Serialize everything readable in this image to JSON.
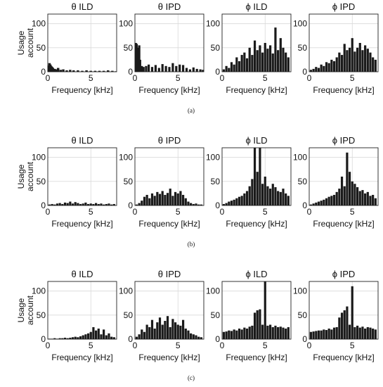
{
  "chart_data": [
    {
      "caption": "(a)",
      "panels": [
        {
          "type": "bar",
          "title": "θ ILD",
          "xlabel": "Frequency [kHz]",
          "ylabel": "Usage account",
          "xlim": [
            0,
            8
          ],
          "ylim": [
            0,
            120
          ],
          "xticks": [
            0,
            5
          ],
          "yticks": [
            0,
            50,
            100
          ],
          "x": [
            0.1,
            0.2,
            0.3,
            0.4,
            0.5,
            0.6,
            0.8,
            1.0,
            1.2,
            1.5,
            1.8,
            2.2,
            2.6,
            3.0,
            3.5,
            4.0,
            4.5,
            5.0,
            5.5,
            6.0,
            6.5,
            7.0,
            7.5,
            7.9
          ],
          "values": [
            13,
            18,
            15,
            12,
            10,
            8,
            6,
            5,
            8,
            4,
            5,
            3,
            4,
            3,
            3,
            2,
            3,
            2,
            2,
            2,
            2,
            3,
            2,
            1
          ]
        },
        {
          "type": "bar",
          "title": "θ IPD",
          "xlabel": "Frequency [kHz]",
          "ylabel": "",
          "xlim": [
            0,
            8
          ],
          "ylim": [
            0,
            120
          ],
          "xticks": [
            0,
            5
          ],
          "yticks": [
            0,
            50,
            100
          ],
          "x": [
            0.1,
            0.2,
            0.3,
            0.4,
            0.5,
            0.6,
            0.8,
            1.0,
            1.3,
            1.6,
            2.0,
            2.4,
            2.8,
            3.2,
            3.6,
            4.0,
            4.4,
            4.8,
            5.2,
            5.6,
            6.0,
            6.4,
            6.8,
            7.2,
            7.6,
            7.9
          ],
          "values": [
            60,
            58,
            50,
            45,
            55,
            25,
            12,
            10,
            12,
            15,
            10,
            14,
            8,
            16,
            12,
            10,
            18,
            12,
            15,
            14,
            8,
            5,
            9,
            6,
            5,
            4
          ]
        },
        {
          "type": "bar",
          "title": "ϕ ILD",
          "xlabel": "Frequency [kHz]",
          "ylabel": "",
          "xlim": [
            0,
            8
          ],
          "ylim": [
            0,
            120
          ],
          "xticks": [
            0,
            5
          ],
          "yticks": [
            0,
            50,
            100
          ],
          "x": [
            0.2,
            0.5,
            0.8,
            1.1,
            1.4,
            1.7,
            2.0,
            2.3,
            2.6,
            2.9,
            3.2,
            3.5,
            3.8,
            4.1,
            4.4,
            4.7,
            5.0,
            5.3,
            5.6,
            5.9,
            6.2,
            6.5,
            6.8,
            7.1,
            7.4,
            7.7
          ],
          "values": [
            5,
            12,
            8,
            20,
            15,
            30,
            22,
            35,
            40,
            28,
            50,
            35,
            65,
            45,
            55,
            40,
            60,
            48,
            55,
            38,
            92,
            45,
            70,
            50,
            40,
            30
          ]
        },
        {
          "type": "bar",
          "title": "ϕ IPD",
          "xlabel": "Frequency [kHz]",
          "ylabel": "",
          "xlim": [
            0,
            8
          ],
          "ylim": [
            0,
            120
          ],
          "xticks": [
            0,
            5
          ],
          "yticks": [
            0,
            50,
            100
          ],
          "x": [
            0.2,
            0.5,
            0.8,
            1.1,
            1.4,
            1.7,
            2.0,
            2.3,
            2.6,
            2.9,
            3.2,
            3.5,
            3.8,
            4.1,
            4.4,
            4.7,
            5.0,
            5.3,
            5.6,
            5.9,
            6.2,
            6.5,
            6.8,
            7.1,
            7.4,
            7.7
          ],
          "values": [
            4,
            6,
            10,
            8,
            15,
            12,
            20,
            18,
            25,
            22,
            30,
            40,
            35,
            58,
            45,
            50,
            70,
            42,
            50,
            60,
            45,
            55,
            48,
            40,
            30,
            25
          ]
        }
      ]
    },
    {
      "caption": "(b)",
      "panels": [
        {
          "type": "bar",
          "title": "θ ILD",
          "xlabel": "Frequency [kHz]",
          "ylabel": "Usage account",
          "xlim": [
            0,
            8
          ],
          "ylim": [
            0,
            120
          ],
          "xticks": [
            0,
            5
          ],
          "yticks": [
            0,
            50,
            100
          ],
          "x": [
            0.2,
            0.5,
            0.8,
            1.1,
            1.4,
            1.7,
            2.0,
            2.3,
            2.6,
            2.9,
            3.2,
            3.5,
            3.8,
            4.1,
            4.4,
            4.7,
            5.0,
            5.3,
            5.6,
            5.9,
            6.2,
            6.5,
            6.8,
            7.1,
            7.4,
            7.7
          ],
          "values": [
            2,
            3,
            2,
            4,
            5,
            3,
            6,
            5,
            8,
            4,
            7,
            5,
            3,
            4,
            6,
            3,
            4,
            3,
            5,
            3,
            4,
            2,
            3,
            4,
            2,
            3
          ]
        },
        {
          "type": "bar",
          "title": "θ IPD",
          "xlabel": "Frequency [kHz]",
          "ylabel": "",
          "xlim": [
            0,
            8
          ],
          "ylim": [
            0,
            120
          ],
          "xticks": [
            0,
            5
          ],
          "yticks": [
            0,
            50,
            100
          ],
          "x": [
            0.2,
            0.5,
            0.8,
            1.1,
            1.4,
            1.7,
            2.0,
            2.3,
            2.6,
            2.9,
            3.2,
            3.5,
            3.8,
            4.1,
            4.4,
            4.7,
            5.0,
            5.3,
            5.6,
            5.9,
            6.2,
            6.5,
            6.8,
            7.1,
            7.4,
            7.7
          ],
          "values": [
            2,
            5,
            10,
            18,
            22,
            15,
            25,
            20,
            28,
            24,
            30,
            22,
            26,
            35,
            20,
            28,
            25,
            30,
            22,
            15,
            8,
            5,
            3,
            4,
            2,
            2
          ]
        },
        {
          "type": "bar",
          "title": "ϕ ILD",
          "xlabel": "Frequency [kHz]",
          "ylabel": "",
          "xlim": [
            0,
            8
          ],
          "ylim": [
            0,
            120
          ],
          "xticks": [
            0,
            5
          ],
          "yticks": [
            0,
            50,
            100
          ],
          "x": [
            0.2,
            0.5,
            0.8,
            1.1,
            1.4,
            1.7,
            2.0,
            2.3,
            2.6,
            2.9,
            3.2,
            3.5,
            3.8,
            4.1,
            4.4,
            4.7,
            5.0,
            5.3,
            5.6,
            5.9,
            6.2,
            6.5,
            6.8,
            7.1,
            7.4,
            7.7
          ],
          "values": [
            3,
            5,
            8,
            10,
            12,
            15,
            18,
            20,
            25,
            30,
            40,
            55,
            120,
            70,
            120,
            45,
            60,
            40,
            35,
            45,
            38,
            30,
            28,
            35,
            25,
            20
          ]
        },
        {
          "type": "bar",
          "title": "ϕ IPD",
          "xlabel": "Frequency [kHz]",
          "ylabel": "",
          "xlim": [
            0,
            8
          ],
          "ylim": [
            0,
            120
          ],
          "xticks": [
            0,
            5
          ],
          "yticks": [
            0,
            50,
            100
          ],
          "x": [
            0.2,
            0.5,
            0.8,
            1.1,
            1.4,
            1.7,
            2.0,
            2.3,
            2.6,
            2.9,
            3.2,
            3.5,
            3.8,
            4.1,
            4.4,
            4.7,
            5.0,
            5.3,
            5.6,
            5.9,
            6.2,
            6.5,
            6.8,
            7.1,
            7.4,
            7.7
          ],
          "values": [
            2,
            4,
            6,
            8,
            10,
            12,
            15,
            18,
            20,
            22,
            28,
            35,
            60,
            40,
            110,
            70,
            50,
            45,
            38,
            30,
            32,
            25,
            28,
            20,
            22,
            15
          ]
        }
      ]
    },
    {
      "caption": "(c)",
      "panels": [
        {
          "type": "bar",
          "title": "θ ILD",
          "xlabel": "Frequency [kHz]",
          "ylabel": "Usage account",
          "xlim": [
            0,
            8
          ],
          "ylim": [
            0,
            120
          ],
          "xticks": [
            0,
            5
          ],
          "yticks": [
            0,
            50,
            100
          ],
          "x": [
            0.2,
            0.5,
            0.8,
            1.1,
            1.4,
            1.7,
            2.0,
            2.3,
            2.6,
            2.9,
            3.2,
            3.5,
            3.8,
            4.1,
            4.4,
            4.7,
            5.0,
            5.3,
            5.6,
            5.9,
            6.2,
            6.5,
            6.8,
            7.1,
            7.4,
            7.7
          ],
          "values": [
            1,
            1,
            2,
            1,
            2,
            2,
            3,
            2,
            3,
            4,
            5,
            4,
            6,
            8,
            10,
            12,
            15,
            25,
            18,
            22,
            10,
            20,
            8,
            12,
            5,
            4
          ]
        },
        {
          "type": "bar",
          "title": "θ IPD",
          "xlabel": "Frequency [kHz]",
          "ylabel": "",
          "xlim": [
            0,
            8
          ],
          "ylim": [
            0,
            120
          ],
          "xticks": [
            0,
            5
          ],
          "yticks": [
            0,
            50,
            100
          ],
          "x": [
            0.2,
            0.5,
            0.8,
            1.1,
            1.4,
            1.7,
            2.0,
            2.3,
            2.6,
            2.9,
            3.2,
            3.5,
            3.8,
            4.1,
            4.4,
            4.7,
            5.0,
            5.3,
            5.6,
            5.9,
            6.2,
            6.5,
            6.8,
            7.1,
            7.4,
            7.7
          ],
          "values": [
            5,
            10,
            20,
            15,
            30,
            25,
            40,
            22,
            35,
            45,
            30,
            38,
            48,
            25,
            42,
            35,
            30,
            28,
            40,
            22,
            18,
            12,
            10,
            8,
            5,
            4
          ]
        },
        {
          "type": "bar",
          "title": "ϕ ILD",
          "xlabel": "Frequency [kHz]",
          "ylabel": "",
          "xlim": [
            0,
            8
          ],
          "ylim": [
            0,
            120
          ],
          "xticks": [
            0,
            5
          ],
          "yticks": [
            0,
            50,
            100
          ],
          "x": [
            0.2,
            0.5,
            0.8,
            1.1,
            1.4,
            1.7,
            2.0,
            2.3,
            2.6,
            2.9,
            3.2,
            3.5,
            3.8,
            4.1,
            4.4,
            4.7,
            5.0,
            5.3,
            5.6,
            5.9,
            6.2,
            6.5,
            6.8,
            7.1,
            7.4,
            7.7
          ],
          "values": [
            15,
            16,
            18,
            17,
            20,
            18,
            22,
            20,
            24,
            22,
            26,
            28,
            55,
            60,
            62,
            30,
            120,
            28,
            30,
            25,
            28,
            25,
            26,
            24,
            22,
            25
          ]
        },
        {
          "type": "bar",
          "title": "ϕ IPD",
          "xlabel": "Frequency [kHz]",
          "ylabel": "",
          "xlim": [
            0,
            8
          ],
          "ylim": [
            0,
            120
          ],
          "xticks": [
            0,
            5
          ],
          "yticks": [
            0,
            50,
            100
          ],
          "x": [
            0.2,
            0.5,
            0.8,
            1.1,
            1.4,
            1.7,
            2.0,
            2.3,
            2.6,
            2.9,
            3.2,
            3.5,
            3.8,
            4.1,
            4.4,
            4.7,
            5.0,
            5.3,
            5.6,
            5.9,
            6.2,
            6.5,
            6.8,
            7.1,
            7.4,
            7.7
          ],
          "values": [
            15,
            16,
            17,
            18,
            18,
            20,
            19,
            22,
            20,
            24,
            25,
            45,
            55,
            60,
            68,
            30,
            110,
            25,
            28,
            24,
            26,
            22,
            25,
            24,
            22,
            20
          ]
        }
      ]
    }
  ]
}
